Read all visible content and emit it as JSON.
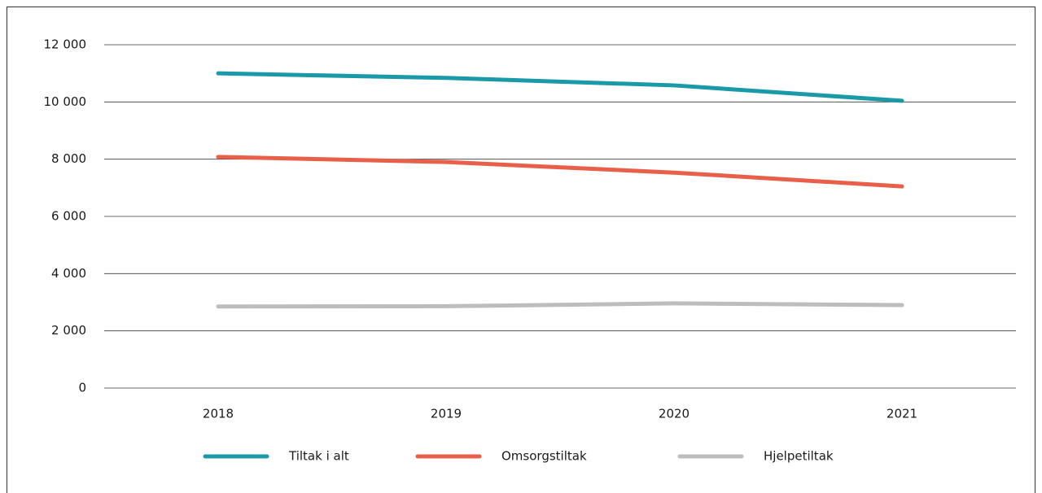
{
  "chart_data": {
    "type": "line",
    "categories": [
      "2018",
      "2019",
      "2020",
      "2021"
    ],
    "series": [
      {
        "name": "Tiltak i alt",
        "color": "#1a9aa8",
        "values": [
          11000,
          10840,
          10580,
          10040
        ]
      },
      {
        "name": "Omsorgstiltak",
        "color": "#e8604a",
        "values": [
          8080,
          7900,
          7530,
          7050
        ]
      },
      {
        "name": "Hjelpetiltak",
        "color": "#bdbdbd",
        "values": [
          2850,
          2860,
          2960,
          2900
        ]
      }
    ],
    "ylim": [
      0,
      12000
    ],
    "yticks": [
      0,
      {
        "value": 2000,
        "label": "2 000"
      },
      {
        "value": 4000,
        "label": "4 000"
      },
      {
        "value": 6000,
        "label": "6 000"
      },
      {
        "value": 8000,
        "label": "8 000"
      },
      {
        "value": 10000,
        "label": "10 000"
      },
      {
        "value": 12000,
        "label": "12 000"
      }
    ],
    "grid": true,
    "legend": "bottom"
  }
}
